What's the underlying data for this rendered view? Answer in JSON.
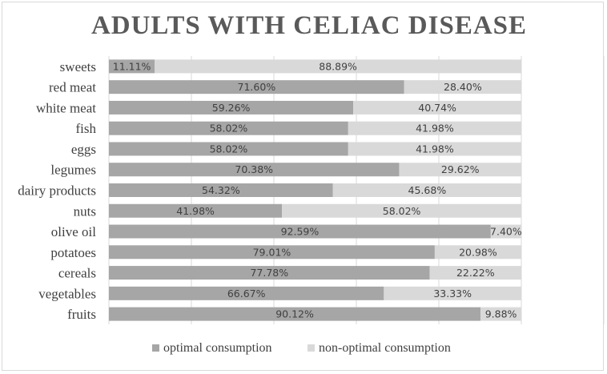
{
  "chart_data": {
    "type": "bar",
    "orientation": "horizontal",
    "stacked": true,
    "percent_stacked": true,
    "title": "ADULTS WITH CELIAC DISEASE",
    "xlabel": "",
    "ylabel": "",
    "xlim": [
      0,
      100
    ],
    "grid": true,
    "legend_position": "bottom",
    "categories": [
      "sweets",
      "red meat",
      "white meat",
      "fish",
      "eggs",
      "legumes",
      "dairy products",
      "nuts",
      "olive oil",
      "potatoes",
      "cereals",
      "vegetables",
      "fruits"
    ],
    "series": [
      {
        "name": "optimal consumption",
        "color": "#a6a6a6",
        "values": [
          11.11,
          71.6,
          59.26,
          58.02,
          58.02,
          70.38,
          54.32,
          41.98,
          92.59,
          79.01,
          77.78,
          66.67,
          90.12
        ],
        "labels": [
          "11.11%",
          "71.60%",
          "59.26%",
          "58.02%",
          "58.02%",
          "70.38%",
          "54.32%",
          "41.98%",
          "92.59%",
          "79.01%",
          "77.78%",
          "66.67%",
          "90.12%"
        ]
      },
      {
        "name": "non-optimal consumption",
        "color": "#d9d9d9",
        "values": [
          88.89,
          28.4,
          40.74,
          41.98,
          41.98,
          29.62,
          45.68,
          58.02,
          7.4,
          20.98,
          22.22,
          33.33,
          9.88
        ],
        "labels": [
          "88.89%",
          "28.40%",
          "40.74%",
          "41.98%",
          "41.98%",
          "29.62%",
          "45.68%",
          "58.02%",
          "7.40%",
          "20.98%",
          "22.22%",
          "33.33%",
          "9.88%"
        ]
      }
    ]
  }
}
